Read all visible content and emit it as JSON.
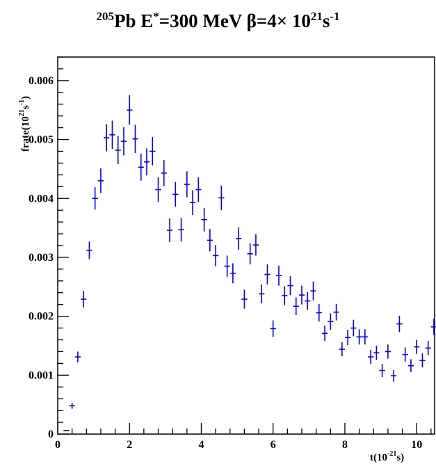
{
  "chart_data": {
    "type": "scatter",
    "title": {
      "prefix_sup": "205",
      "main": "Pb E",
      "star_sup": "*",
      "energy": "=300 MeV ",
      "beta": "β=4× 10",
      "exp_sup": "21",
      "unit": "s",
      "unit_sup": "-1"
    },
    "xlabel": {
      "main": "t(10",
      "sup": "-21",
      "end": "s)"
    },
    "ylabel": {
      "main": "frate(10",
      "sup": "21",
      "mid": "s",
      "sup2": "-1",
      "end": ")"
    },
    "xlim": [
      0,
      10.5
    ],
    "ylim": [
      0,
      0.0064
    ],
    "x_ticks": [
      0,
      2,
      4,
      6,
      8,
      10
    ],
    "x_tick_labels": [
      "0",
      "2",
      "4",
      "6",
      "8",
      "10"
    ],
    "y_ticks": [
      0,
      0.001,
      0.002,
      0.003,
      0.004,
      0.005,
      0.006
    ],
    "y_tick_labels": [
      "0",
      "0.001",
      "0.002",
      "0.003",
      "0.004",
      "0.005",
      "0.006"
    ],
    "marker_color": "#0000dd",
    "grid": false,
    "x_halfwidth": 0.08,
    "series": [
      {
        "x": [
          0.24,
          0.4,
          0.56,
          0.72,
          0.88,
          1.04,
          1.2,
          1.36,
          1.52,
          1.68,
          1.84,
          2.0,
          2.16,
          2.32,
          2.48,
          2.64,
          2.8,
          2.96,
          3.12,
          3.28,
          3.44,
          3.6,
          3.76,
          3.92,
          4.08,
          4.24,
          4.4,
          4.56,
          4.72,
          4.88,
          5.04,
          5.2,
          5.36,
          5.52,
          5.68,
          5.84,
          6.0,
          6.16,
          6.32,
          6.48,
          6.64,
          6.8,
          6.96,
          7.12,
          7.28,
          7.44,
          7.6,
          7.76,
          7.92,
          8.08,
          8.24,
          8.4,
          8.56,
          8.72,
          8.88,
          9.04,
          9.2,
          9.36,
          9.52,
          9.68,
          9.84,
          10.0,
          10.16,
          10.32,
          10.48
        ],
        "y": [
          6e-05,
          0.00048,
          0.00131,
          0.00229,
          0.00312,
          0.004,
          0.0043,
          0.00503,
          0.00508,
          0.00482,
          0.00497,
          0.0055,
          0.00501,
          0.00453,
          0.00462,
          0.0048,
          0.00415,
          0.00443,
          0.00346,
          0.00407,
          0.00347,
          0.00424,
          0.00393,
          0.00415,
          0.00364,
          0.00329,
          0.00303,
          0.00401,
          0.00285,
          0.00273,
          0.00332,
          0.00229,
          0.00306,
          0.00321,
          0.00238,
          0.00271,
          0.00179,
          0.00269,
          0.00235,
          0.00252,
          0.00217,
          0.00236,
          0.00226,
          0.00243,
          0.00206,
          0.00171,
          0.00191,
          0.00207,
          0.00144,
          0.00164,
          0.0018,
          0.00165,
          0.00165,
          0.00131,
          0.00138,
          0.00108,
          0.0014,
          0.00099,
          0.00187,
          0.00135,
          0.00116,
          0.00148,
          0.00125,
          0.00146,
          0.00182
        ],
        "yerr": [
          1e-05,
          5e-05,
          9e-05,
          0.00014,
          0.00015,
          0.00019,
          0.00021,
          0.00023,
          0.00024,
          0.00024,
          0.00024,
          0.00025,
          0.00024,
          0.00023,
          0.00023,
          0.00024,
          0.00021,
          0.00022,
          0.0002,
          0.00021,
          0.0002,
          0.00022,
          0.00021,
          0.00021,
          0.0002,
          0.00019,
          0.00018,
          0.00021,
          0.00018,
          0.00017,
          0.00019,
          0.00016,
          0.00018,
          0.00018,
          0.00016,
          0.00017,
          0.00014,
          0.00017,
          0.00016,
          0.00016,
          0.00015,
          0.00016,
          0.00015,
          0.00016,
          0.00015,
          0.00013,
          0.00014,
          0.00014,
          0.00012,
          0.00013,
          0.00014,
          0.00013,
          0.00013,
          0.00012,
          0.00012,
          0.00011,
          0.00012,
          0.0001,
          0.00014,
          0.00012,
          0.00011,
          0.00012,
          0.00012,
          0.00012,
          0.00014
        ]
      }
    ]
  }
}
